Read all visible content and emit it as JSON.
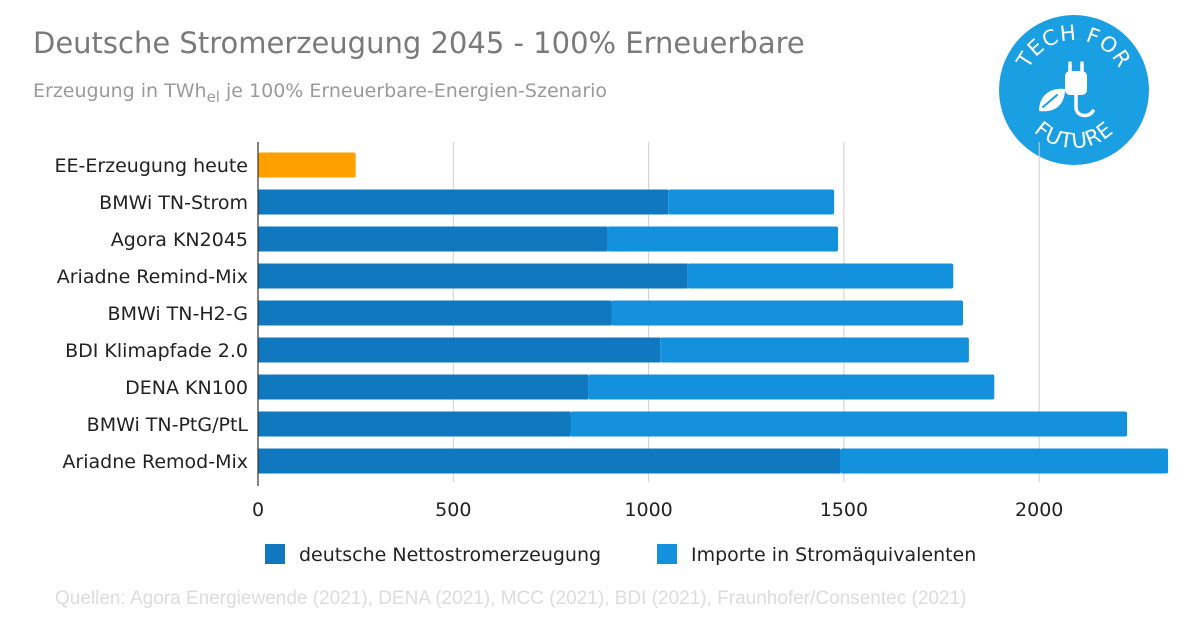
{
  "title": "Deutsche Stromerzeugung 2045 - 100% Erneuerbare",
  "subtitle": {
    "before": "Erzeugung in TWh",
    "unit_sub": "el",
    "after": " je 100% Erneuerbare-Energien-Szenario"
  },
  "logo": {
    "text_top": "TECH FOR",
    "text_bottom": "FUTURE",
    "icon": "plug-leaf-icon",
    "color": "#1a9fe3"
  },
  "legend": [
    {
      "label": "deutsche Nettostromerzeugung",
      "color": "#0f78bf"
    },
    {
      "label": "Importe in Stromäquivalenten",
      "color": "#1391dd"
    }
  ],
  "source": "Quellen: Agora Energiewende (2021), DENA (2021), MCC (2021), BDI (2021), Fraunhofer/Consentec (2021)",
  "chart_data": {
    "type": "bar",
    "orientation": "horizontal",
    "stacked": true,
    "categories": [
      "EE-Erzeugung heute",
      "BMWi TN-Strom",
      "Agora KN2045",
      "Ariadne Remind-Mix",
      "BMWi TN-H2-G",
      "BDI Klimapfade 2.0",
      "DENA KN100",
      "BMWi TN-PtG/PtL",
      "Ariadne Remod-Mix"
    ],
    "series": [
      {
        "name": "deutsche Nettostromerzeugung",
        "color": "#0f78bf",
        "values": [
          250,
          1050,
          895,
          1100,
          905,
          1030,
          845,
          800,
          1490
        ]
      },
      {
        "name": "Importe in Stromäquivalenten",
        "color": "#1391dd",
        "values": [
          0,
          425,
          590,
          680,
          900,
          790,
          1040,
          1425,
          840
        ]
      }
    ],
    "highlight": {
      "category": "EE-Erzeugung heute",
      "color": "#ff9f00"
    },
    "xticks": [
      0,
      500,
      1000,
      1500,
      2000
    ],
    "xlim": [
      0,
      2330
    ],
    "grid": true,
    "legend_position": "bottom"
  }
}
